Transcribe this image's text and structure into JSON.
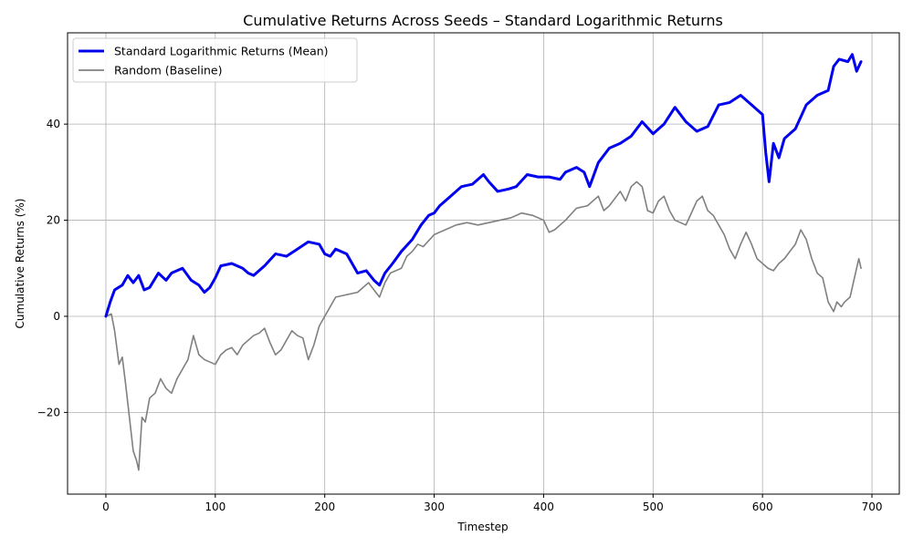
{
  "chart_data": {
    "type": "line",
    "title": "Cumulative Returns Across Seeds – Standard Logarithmic Returns",
    "xlabel": "Timestep",
    "ylabel": "Cumulative Returns (%)",
    "xlim": [
      -35,
      725
    ],
    "ylim": [
      -37,
      59
    ],
    "xticks": [
      0,
      100,
      200,
      300,
      400,
      500,
      600,
      700
    ],
    "yticks": [
      -20,
      0,
      20,
      40
    ],
    "ytick_labels": [
      "−20",
      "0",
      "20",
      "40"
    ],
    "grid": true,
    "legend_position": "top-left",
    "series": [
      {
        "name": "Standard Logarithmic Returns (Mean)",
        "color": "#0000ee",
        "points": [
          [
            0,
            0
          ],
          [
            4,
            3
          ],
          [
            8,
            5.5
          ],
          [
            15,
            6.5
          ],
          [
            20,
            8.5
          ],
          [
            25,
            7
          ],
          [
            30,
            8.5
          ],
          [
            35,
            5.5
          ],
          [
            40,
            6
          ],
          [
            48,
            9
          ],
          [
            55,
            7.5
          ],
          [
            60,
            9
          ],
          [
            70,
            10
          ],
          [
            78,
            7.5
          ],
          [
            85,
            6.5
          ],
          [
            90,
            5
          ],
          [
            95,
            6
          ],
          [
            100,
            8
          ],
          [
            105,
            10.5
          ],
          [
            115,
            11
          ],
          [
            125,
            10
          ],
          [
            130,
            9
          ],
          [
            135,
            8.5
          ],
          [
            145,
            10.5
          ],
          [
            155,
            13
          ],
          [
            165,
            12.5
          ],
          [
            175,
            14
          ],
          [
            185,
            15.5
          ],
          [
            195,
            15
          ],
          [
            200,
            13
          ],
          [
            205,
            12.5
          ],
          [
            210,
            14
          ],
          [
            220,
            13
          ],
          [
            230,
            9
          ],
          [
            238,
            9.5
          ],
          [
            245,
            7.5
          ],
          [
            250,
            6.5
          ],
          [
            255,
            9
          ],
          [
            262,
            11
          ],
          [
            270,
            13.5
          ],
          [
            280,
            16
          ],
          [
            288,
            19
          ],
          [
            295,
            21
          ],
          [
            300,
            21.5
          ],
          [
            305,
            23
          ],
          [
            315,
            25
          ],
          [
            325,
            27
          ],
          [
            335,
            27.5
          ],
          [
            345,
            29.5
          ],
          [
            350,
            28
          ],
          [
            358,
            26
          ],
          [
            368,
            26.5
          ],
          [
            375,
            27
          ],
          [
            385,
            29.5
          ],
          [
            395,
            29
          ],
          [
            405,
            29
          ],
          [
            415,
            28.5
          ],
          [
            420,
            30
          ],
          [
            430,
            31
          ],
          [
            437,
            30
          ],
          [
            442,
            27
          ],
          [
            450,
            32
          ],
          [
            460,
            35
          ],
          [
            470,
            36
          ],
          [
            480,
            37.5
          ],
          [
            490,
            40.5
          ],
          [
            500,
            38
          ],
          [
            510,
            40
          ],
          [
            520,
            43.5
          ],
          [
            530,
            40.5
          ],
          [
            540,
            38.5
          ],
          [
            550,
            39.5
          ],
          [
            560,
            44
          ],
          [
            570,
            44.5
          ],
          [
            580,
            46
          ],
          [
            590,
            44
          ],
          [
            600,
            42
          ],
          [
            603,
            34
          ],
          [
            606,
            28
          ],
          [
            610,
            36
          ],
          [
            615,
            33
          ],
          [
            620,
            37
          ],
          [
            630,
            39
          ],
          [
            640,
            44
          ],
          [
            650,
            46
          ],
          [
            660,
            47
          ],
          [
            665,
            52
          ],
          [
            670,
            53.5
          ],
          [
            678,
            53
          ],
          [
            682,
            54.5
          ],
          [
            686,
            51
          ],
          [
            690,
            53
          ]
        ]
      },
      {
        "name": "Random (Baseline)",
        "color": "#808080",
        "points": [
          [
            0,
            0
          ],
          [
            5,
            0.5
          ],
          [
            8,
            -3
          ],
          [
            12,
            -10
          ],
          [
            15,
            -8.5
          ],
          [
            18,
            -14
          ],
          [
            22,
            -22
          ],
          [
            25,
            -28
          ],
          [
            28,
            -30
          ],
          [
            30,
            -32
          ],
          [
            33,
            -21
          ],
          [
            36,
            -22
          ],
          [
            40,
            -17
          ],
          [
            45,
            -16
          ],
          [
            50,
            -13
          ],
          [
            55,
            -15
          ],
          [
            60,
            -16
          ],
          [
            65,
            -13
          ],
          [
            70,
            -11
          ],
          [
            75,
            -9
          ],
          [
            80,
            -4
          ],
          [
            85,
            -8
          ],
          [
            90,
            -9
          ],
          [
            95,
            -9.5
          ],
          [
            100,
            -10
          ],
          [
            105,
            -8
          ],
          [
            110,
            -7
          ],
          [
            115,
            -6.5
          ],
          [
            120,
            -8
          ],
          [
            125,
            -6
          ],
          [
            130,
            -5
          ],
          [
            135,
            -4
          ],
          [
            140,
            -3.5
          ],
          [
            145,
            -2.5
          ],
          [
            150,
            -5.5
          ],
          [
            155,
            -8
          ],
          [
            160,
            -7
          ],
          [
            165,
            -5
          ],
          [
            170,
            -3
          ],
          [
            175,
            -4
          ],
          [
            180,
            -4.5
          ],
          [
            185,
            -9
          ],
          [
            190,
            -6
          ],
          [
            195,
            -2
          ],
          [
            200,
            0
          ],
          [
            205,
            2
          ],
          [
            210,
            4
          ],
          [
            220,
            4.5
          ],
          [
            230,
            5
          ],
          [
            240,
            7
          ],
          [
            245,
            5.5
          ],
          [
            250,
            4
          ],
          [
            255,
            7
          ],
          [
            260,
            9
          ],
          [
            270,
            10
          ],
          [
            275,
            12.5
          ],
          [
            280,
            13.5
          ],
          [
            285,
            15
          ],
          [
            290,
            14.5
          ],
          [
            300,
            17
          ],
          [
            310,
            18
          ],
          [
            320,
            19
          ],
          [
            330,
            19.5
          ],
          [
            340,
            19
          ],
          [
            350,
            19.5
          ],
          [
            360,
            20
          ],
          [
            370,
            20.5
          ],
          [
            380,
            21.5
          ],
          [
            390,
            21
          ],
          [
            400,
            20
          ],
          [
            405,
            17.5
          ],
          [
            410,
            18
          ],
          [
            420,
            20
          ],
          [
            430,
            22.5
          ],
          [
            440,
            23
          ],
          [
            450,
            25
          ],
          [
            455,
            22
          ],
          [
            460,
            23
          ],
          [
            470,
            26
          ],
          [
            475,
            24
          ],
          [
            480,
            27
          ],
          [
            485,
            28
          ],
          [
            490,
            27
          ],
          [
            495,
            22
          ],
          [
            500,
            21.5
          ],
          [
            505,
            24
          ],
          [
            510,
            25
          ],
          [
            515,
            22
          ],
          [
            520,
            20
          ],
          [
            530,
            19
          ],
          [
            540,
            24
          ],
          [
            545,
            25
          ],
          [
            550,
            22
          ],
          [
            555,
            21
          ],
          [
            560,
            19
          ],
          [
            565,
            17
          ],
          [
            570,
            14
          ],
          [
            575,
            12
          ],
          [
            580,
            15
          ],
          [
            585,
            17.5
          ],
          [
            590,
            15
          ],
          [
            595,
            12
          ],
          [
            600,
            11
          ],
          [
            605,
            10
          ],
          [
            610,
            9.5
          ],
          [
            615,
            11
          ],
          [
            620,
            12
          ],
          [
            630,
            15
          ],
          [
            635,
            18
          ],
          [
            640,
            16
          ],
          [
            645,
            12
          ],
          [
            650,
            9
          ],
          [
            655,
            8
          ],
          [
            660,
            3
          ],
          [
            665,
            1
          ],
          [
            668,
            3
          ],
          [
            672,
            2
          ],
          [
            675,
            3
          ],
          [
            680,
            4
          ],
          [
            685,
            9
          ],
          [
            688,
            12
          ],
          [
            690,
            10
          ]
        ]
      }
    ]
  }
}
